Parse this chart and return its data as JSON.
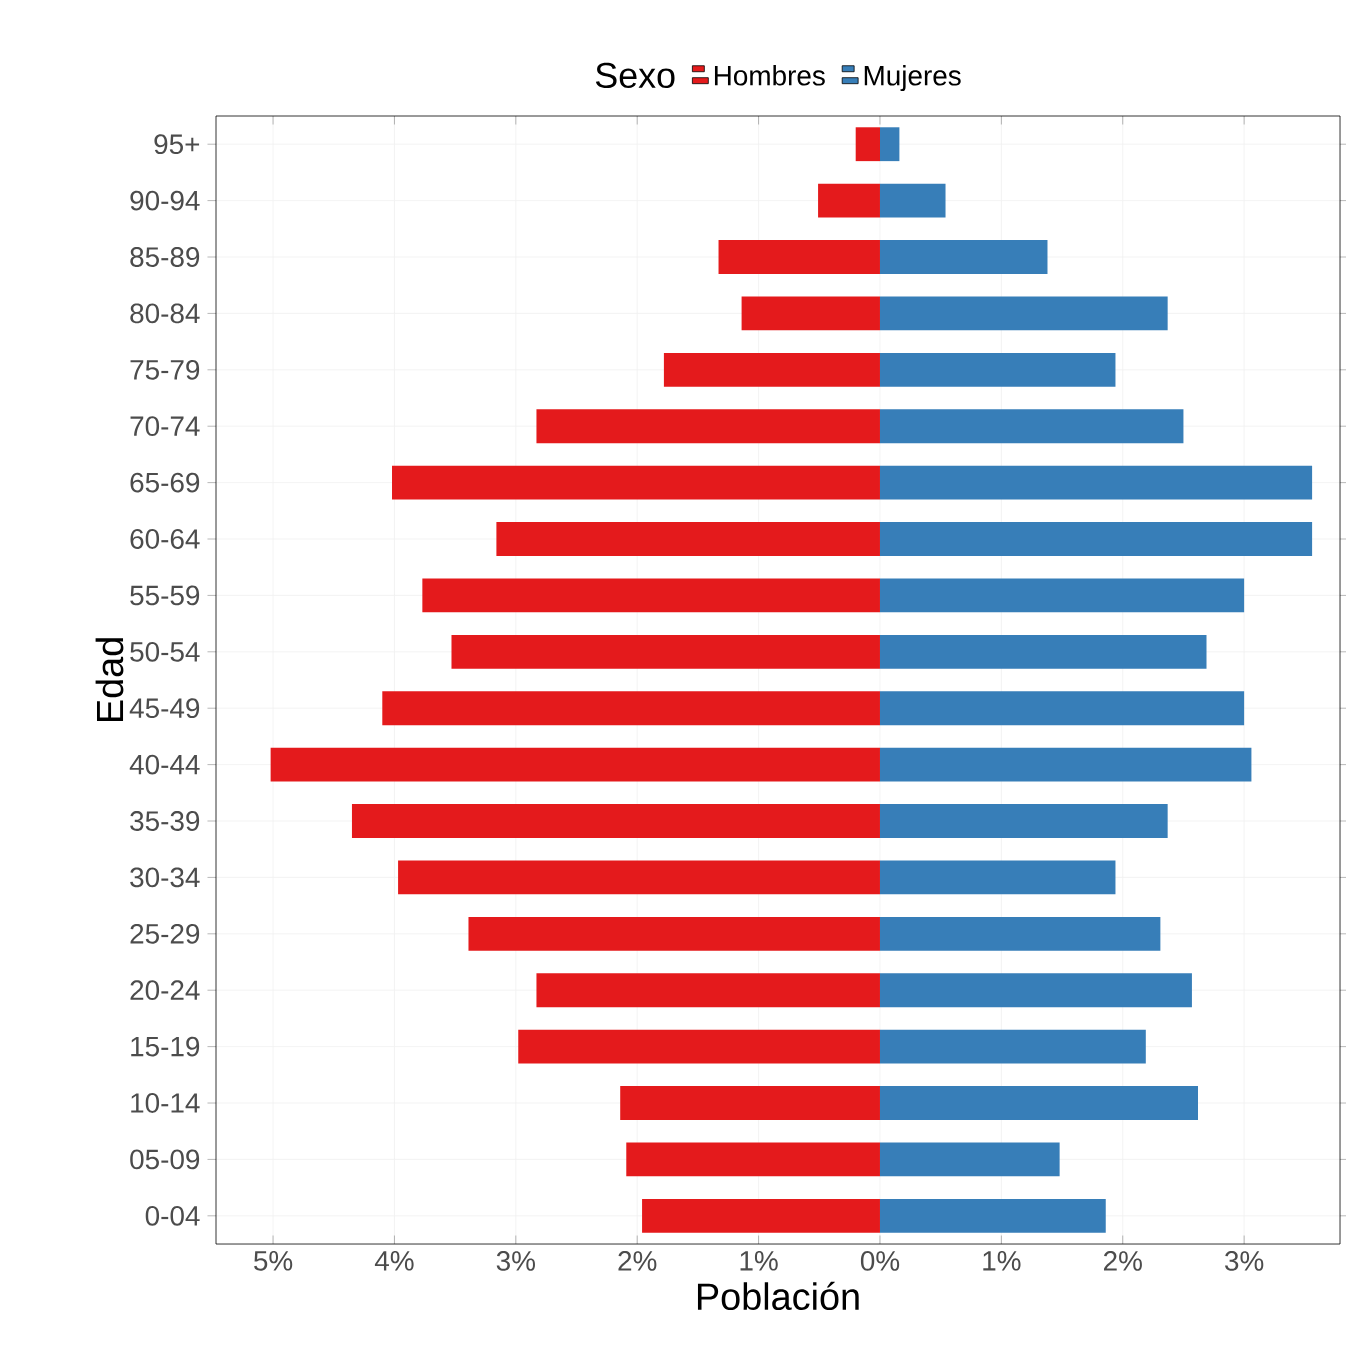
{
  "chart_data": {
    "type": "bar",
    "orientation": "horizontal",
    "stacked": true,
    "xlabel": "Población",
    "ylabel": "Edad",
    "legend_title": "Sexo",
    "legend": "top",
    "grid": true,
    "categories": [
      "95+",
      "90-94",
      "85-89",
      "80-84",
      "75-79",
      "70-74",
      "65-69",
      "60-64",
      "55-59",
      "50-54",
      "45-49",
      "40-44",
      "35-39",
      "30-34",
      "25-29",
      "20-24",
      "15-19",
      "10-14",
      "05-09",
      "0-04"
    ],
    "series": [
      {
        "name": "Hombres",
        "color": "#e41a1c",
        "values": [
          -0.2,
          -0.51,
          -1.33,
          -1.14,
          -1.78,
          -2.83,
          -4.02,
          -3.16,
          -3.77,
          -3.53,
          -4.1,
          -5.02,
          -4.35,
          -3.97,
          -3.39,
          -2.83,
          -2.98,
          -2.14,
          -2.09,
          -1.96
        ]
      },
      {
        "name": "Mujeres",
        "color": "#377eb8",
        "values": [
          0.16,
          0.54,
          1.38,
          2.37,
          1.94,
          2.5,
          3.56,
          3.56,
          3.0,
          2.69,
          3.0,
          3.06,
          2.37,
          1.94,
          2.31,
          2.57,
          2.19,
          2.62,
          1.48,
          1.86
        ]
      }
    ],
    "xlim": [
      -5.47,
      3.79
    ],
    "xticks": [
      {
        "value": -5,
        "label": "5%"
      },
      {
        "value": -4,
        "label": "4%"
      },
      {
        "value": -3,
        "label": "3%"
      },
      {
        "value": -2,
        "label": "2%"
      },
      {
        "value": -1,
        "label": "1%"
      },
      {
        "value": 0,
        "label": "0%"
      },
      {
        "value": 1,
        "label": "1%"
      },
      {
        "value": 2,
        "label": "2%"
      },
      {
        "value": 3,
        "label": "3%"
      }
    ]
  }
}
